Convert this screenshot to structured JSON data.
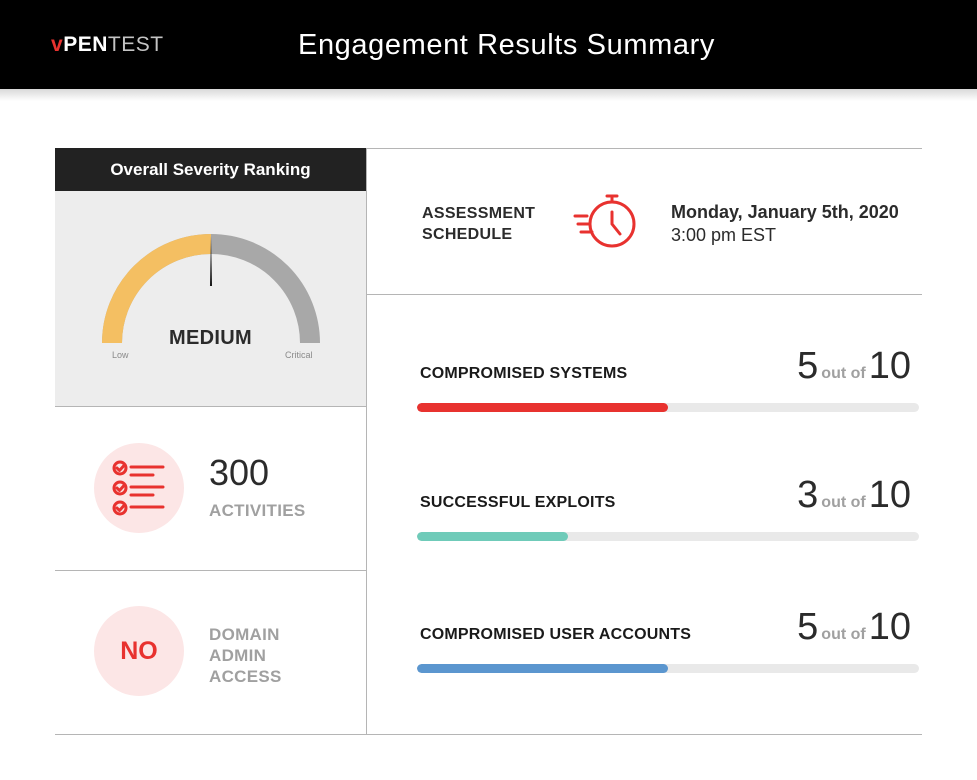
{
  "header": {
    "logo": {
      "v": "v",
      "pen": "PEN",
      "test": "TEST"
    },
    "title": "Engagement Results Summary"
  },
  "severity": {
    "title": "Overall Severity Ranking",
    "level": "MEDIUM",
    "level_fraction": 0.5,
    "low_label": "Low",
    "critical_label": "Critical",
    "colors": {
      "filled": "#f4bf62",
      "empty": "#a8a8a8",
      "needle": "#1a1a1a"
    }
  },
  "activities": {
    "count": "300",
    "label": "ACTIVITIES",
    "icon": "checklist-icon"
  },
  "domain_admin": {
    "value": "NO",
    "label": "DOMAIN ADMIN ACCESS"
  },
  "schedule": {
    "label": "ASSESSMENT SCHEDULE",
    "icon": "fast-clock-icon",
    "date": "Monday, January 5th, 2020",
    "time": "3:00 pm EST"
  },
  "metrics": [
    {
      "label": "COMPROMISED SYSTEMS",
      "value": "5",
      "of_text": "out of",
      "total": "10",
      "fraction": 0.5,
      "color": "#e8322f"
    },
    {
      "label": "SUCCESSFUL EXPLOITS",
      "value": "3",
      "of_text": "out of",
      "total": "10",
      "fraction": 0.3,
      "color": "#6fcbb9"
    },
    {
      "label": "COMPROMISED USER ACCOUNTS",
      "value": "5",
      "of_text": "out of",
      "total": "10",
      "fraction": 0.5,
      "color": "#5b96cf"
    }
  ],
  "colors": {
    "accent": "#e8322f",
    "icon_bg": "#fce6e6"
  }
}
